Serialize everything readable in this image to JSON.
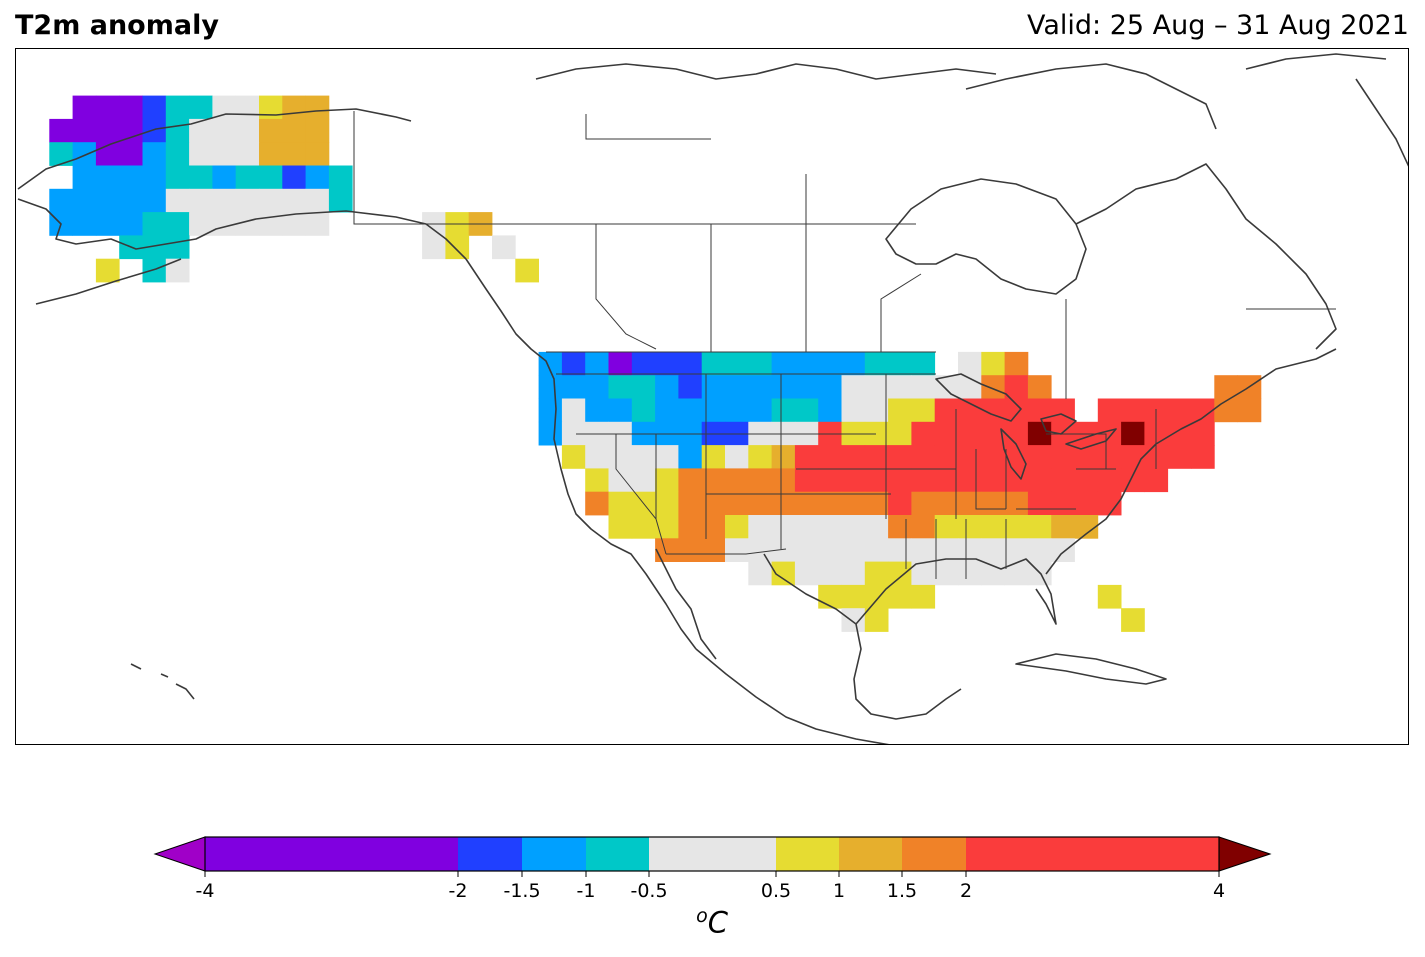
{
  "header": {
    "title": "T2m anomaly",
    "valid": "Valid: 25 Aug – 31 Aug 2021"
  },
  "colorbar": {
    "unit_base": "C",
    "unit_sup": "o",
    "ticks": [
      "-4",
      "-2",
      "-1.5",
      "-1",
      "-0.5",
      "0.5",
      "1",
      "1.5",
      "2",
      "4"
    ],
    "bins": [
      {
        "from": -4,
        "to": -2,
        "color": "#8000e0"
      },
      {
        "from": -2,
        "to": -1.5,
        "color": "#2040ff"
      },
      {
        "from": -1.5,
        "to": -1,
        "color": "#00a0ff"
      },
      {
        "from": -1,
        "to": -0.5,
        "color": "#00c8c8"
      },
      {
        "from": -0.5,
        "to": 0.5,
        "color": "#e6e6e6"
      },
      {
        "from": 0.5,
        "to": 1,
        "color": "#e6dc32"
      },
      {
        "from": 1,
        "to": 1.5,
        "color": "#e6af2d"
      },
      {
        "from": 1.5,
        "to": 2,
        "color": "#f08228"
      },
      {
        "from": 2,
        "to": 4,
        "color": "#fa3c3c"
      }
    ],
    "extend_low_color": "#a000c8",
    "extend_high_color": "#800000"
  },
  "map": {
    "region": "North America",
    "colors": {
      "P": "#8000e0",
      "B": "#2040ff",
      "L": "#00a0ff",
      "C": "#00c8c8",
      "G": "#e6e6e6",
      "Y": "#e6dc32",
      "O": "#e6af2d",
      "R": "#f08228",
      "E": "#fa3c3c",
      "D": "#800000"
    },
    "grid": [
      ".........................................................",
      ".........................................................",
      "..PPPBCCGGYOO............................................",
      ".PPPPBCGGGOOO............................................",
      ".CLPPLCGGGOOO............................................",
      "..LLLLCCLCCBLC...........................................",
      ".LLLLLGGGGGGGC...........................................",
      ".LLLLCCGGGGGG....GYO.....................................",
      "....CCC..........GY.G....................................",
      "...Y.CG..............Y...................................",
      ".........................................................",
      ".........................................................",
      ".........................................................",
      "......................LBLPBBBCCCLLLLCCC.GYR..............",
      "......................LLLCCLBLLLLLLGGGGGGRER.......RR....",
      "......................LGLLCLLLLLCCLGGYYEEEEEE.EEEEERR....",
      "......................LGGGLLLBBGGGEYYYEEEEEDEEEDEEE......",
      ".......................YGGGGLYGYOEEEEEEEEEEEEEEEEEE......",
      "........................YGGYRRRRREEEEEEEEEEEEEEEE.......",
      "........................RYYYRRRRRRRRRERRRRREEEE.........",
      ".........................YYYRRYGGGGGGRRYYYYYOO..........",
      "...........................RRRGGGGGGGGGGGGGGG...........",
      "...............................GYGGGYYGGGGGG............",
      "..................................YYYYY.......Y.........",
      "...................................GY..........Y........",
      "........................................................."
    ]
  }
}
